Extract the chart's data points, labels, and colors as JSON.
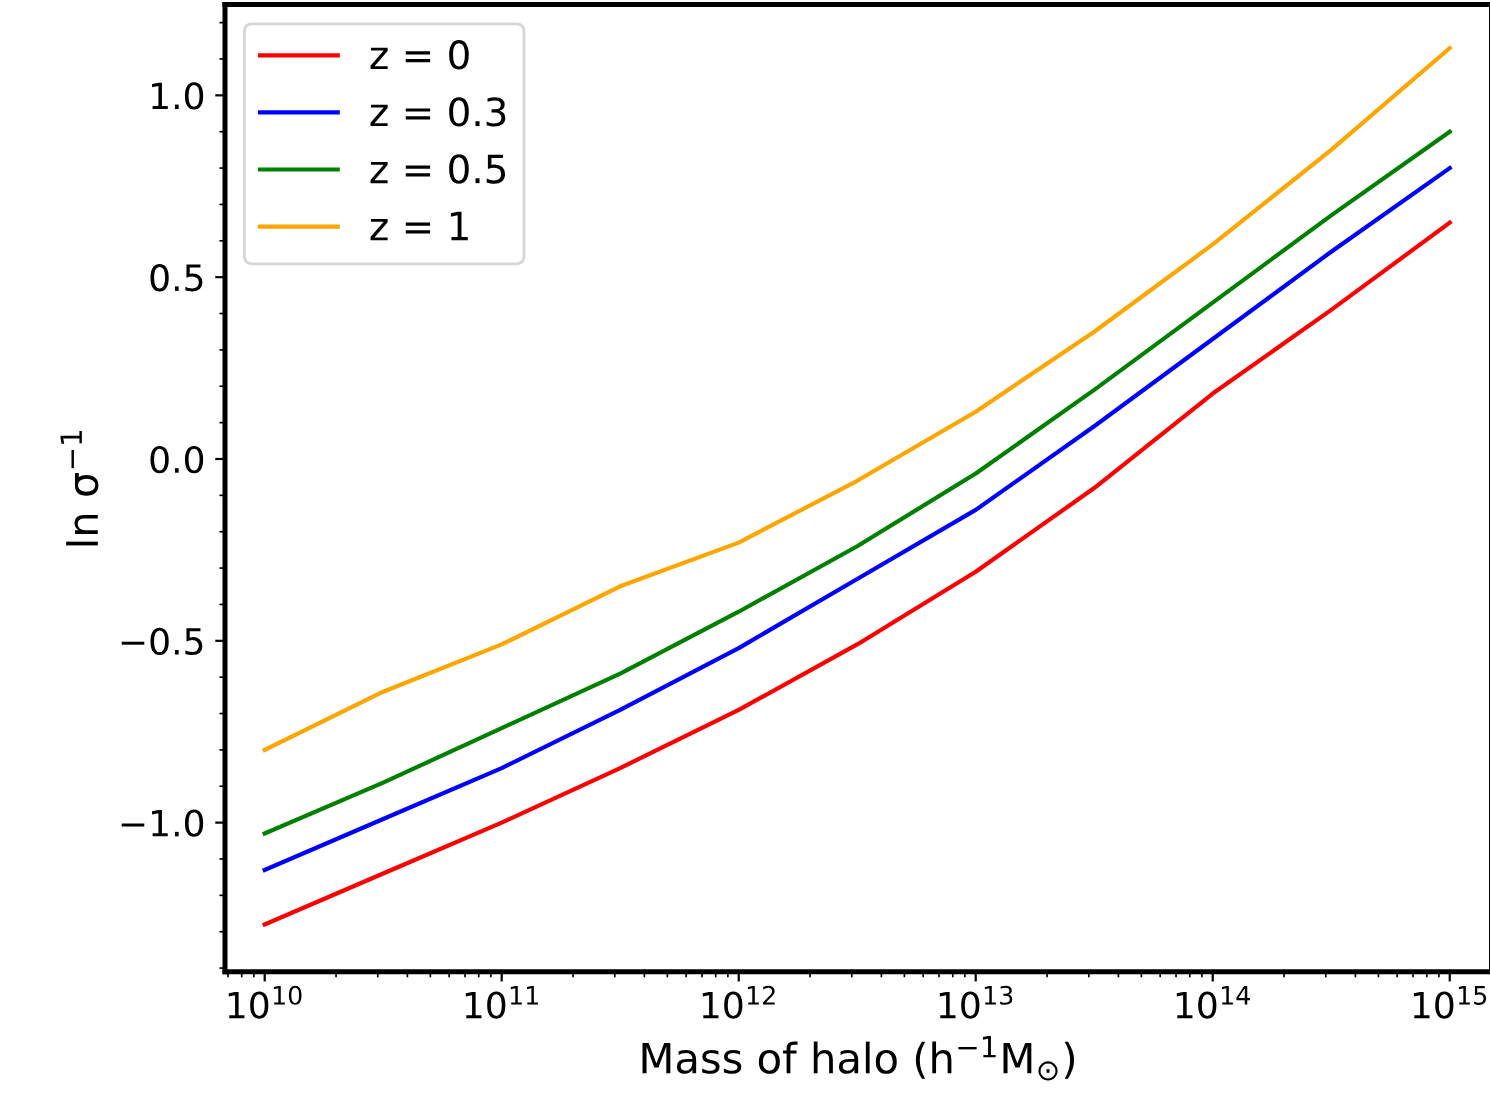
{
  "chart_data": {
    "type": "line",
    "xlabel": "Mass of halo (h$^{−1}$M$_{⊙}$)",
    "ylabel": "ln σ$^{−1}$",
    "x": [
      10000000000.0,
      31620000000.0,
      100000000000.0,
      316200000000.0,
      1000000000000.0,
      3162000000000.0,
      10000000000000.0,
      31620000000000.0,
      100000000000000.0,
      316200000000000.0,
      1000000000000000.0
    ],
    "series": [
      {
        "name": "z = 0",
        "color": "#ff0000",
        "values": [
          -1.28,
          -1.14,
          -1.0,
          -0.85,
          -0.69,
          -0.51,
          -0.31,
          -0.08,
          0.18,
          0.41,
          0.65
        ]
      },
      {
        "name": "z = 0.3",
        "color": "#0000ff",
        "values": [
          -1.13,
          -0.99,
          -0.85,
          -0.69,
          -0.52,
          -0.33,
          -0.14,
          0.09,
          0.33,
          0.57,
          0.8
        ]
      },
      {
        "name": "z = 0.5",
        "color": "#008000",
        "values": [
          -1.03,
          -0.89,
          -0.74,
          -0.59,
          -0.42,
          -0.24,
          -0.04,
          0.19,
          0.43,
          0.67,
          0.9
        ]
      },
      {
        "name": "z = 1",
        "color": "#ffa500",
        "values": [
          -0.8,
          -0.64,
          -0.51,
          -0.35,
          -0.23,
          -0.06,
          0.13,
          0.35,
          0.59,
          0.85,
          1.13
        ]
      }
    ],
    "log": "x",
    "xlim": [
      6800000000.0,
      1500000000000000.0
    ],
    "ylim": [
      -1.41,
      1.25
    ],
    "xticks": [
      {
        "value": 10000000000.0,
        "label": "10$^{10}$"
      },
      {
        "value": 100000000000.0,
        "label": "10$^{11}$"
      },
      {
        "value": 1000000000000.0,
        "label": "10$^{12}$"
      },
      {
        "value": 10000000000000.0,
        "label": "10$^{13}$"
      },
      {
        "value": 100000000000000.0,
        "label": "10$^{14}$"
      },
      {
        "value": 1000000000000000.0,
        "label": "10$^{15}$"
      }
    ],
    "yticks": [
      {
        "value": -1.0,
        "label": "−1.0"
      },
      {
        "value": -0.5,
        "label": "−0.5"
      },
      {
        "value": 0.0,
        "label": "0.0"
      },
      0.5,
      {
        "value": 1.0,
        "label": "1.0"
      }
    ],
    "legend": "top left",
    "grid": false,
    "marker": "none",
    "line_style": "solid"
  }
}
